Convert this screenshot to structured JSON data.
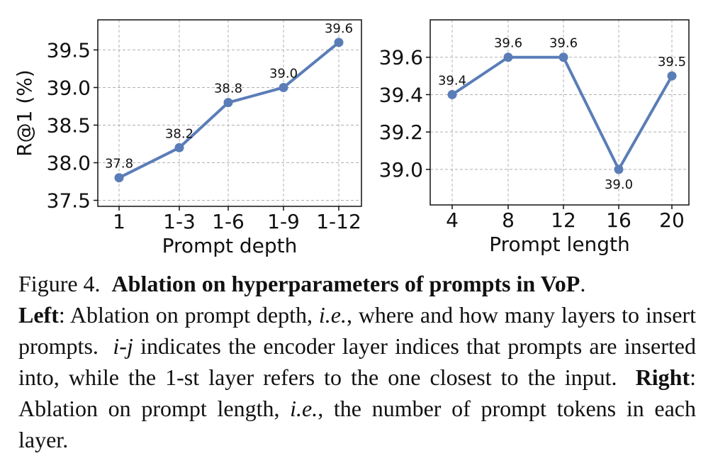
{
  "chart_data": [
    {
      "type": "line",
      "xlabel": "Prompt depth",
      "ylabel": "R@1 (%)",
      "categories": [
        "1",
        "1-3",
        "1-6",
        "1-9",
        "1-12"
      ],
      "series": [
        {
          "values": [
            37.8,
            38.2,
            38.8,
            39.0,
            39.6
          ],
          "color": "#5a7db8"
        }
      ],
      "data_labels": [
        "37.8",
        "38.2",
        "38.8",
        "39.0",
        "39.6"
      ],
      "ylim": [
        37.42,
        39.9
      ],
      "yticks": [
        "37.5",
        "38.0",
        "38.5",
        "39.0",
        "39.5"
      ],
      "grid": true
    },
    {
      "type": "line",
      "xlabel": "Prompt length",
      "ylabel": "",
      "categories": [
        "4",
        "8",
        "12",
        "16",
        "20"
      ],
      "series": [
        {
          "values": [
            39.4,
            39.6,
            39.6,
            39.0,
            39.5
          ],
          "color": "#5a7db8"
        }
      ],
      "data_labels": [
        "39.4",
        "39.6",
        "39.6",
        "39.0",
        "39.5"
      ],
      "ylim": [
        38.81,
        39.8
      ],
      "yticks": [
        "39.0",
        "39.2",
        "39.4",
        "39.6"
      ],
      "grid": true
    }
  ],
  "caption": {
    "figure_num": "Figure 4.",
    "title": "Ablation on hyperparameters of prompts in VoP",
    "title_end": ".",
    "left_label": "Left",
    "left_text_1": ": Ablation on prompt depth, ",
    "ie_1": "i.e.",
    "left_text_2": ", where and how many layers to insert prompts.",
    "ij": "i-j",
    "left_text_3": " indicates the encoder layer indices that prompts are inserted into, while the 1-st layer refers to the one closest to the input.",
    "right_label": "Right",
    "right_text_1": ": Ablation on prompt length, ",
    "ie_2": "i.e.",
    "right_text_2": ", the number of prompt tokens in each layer."
  }
}
